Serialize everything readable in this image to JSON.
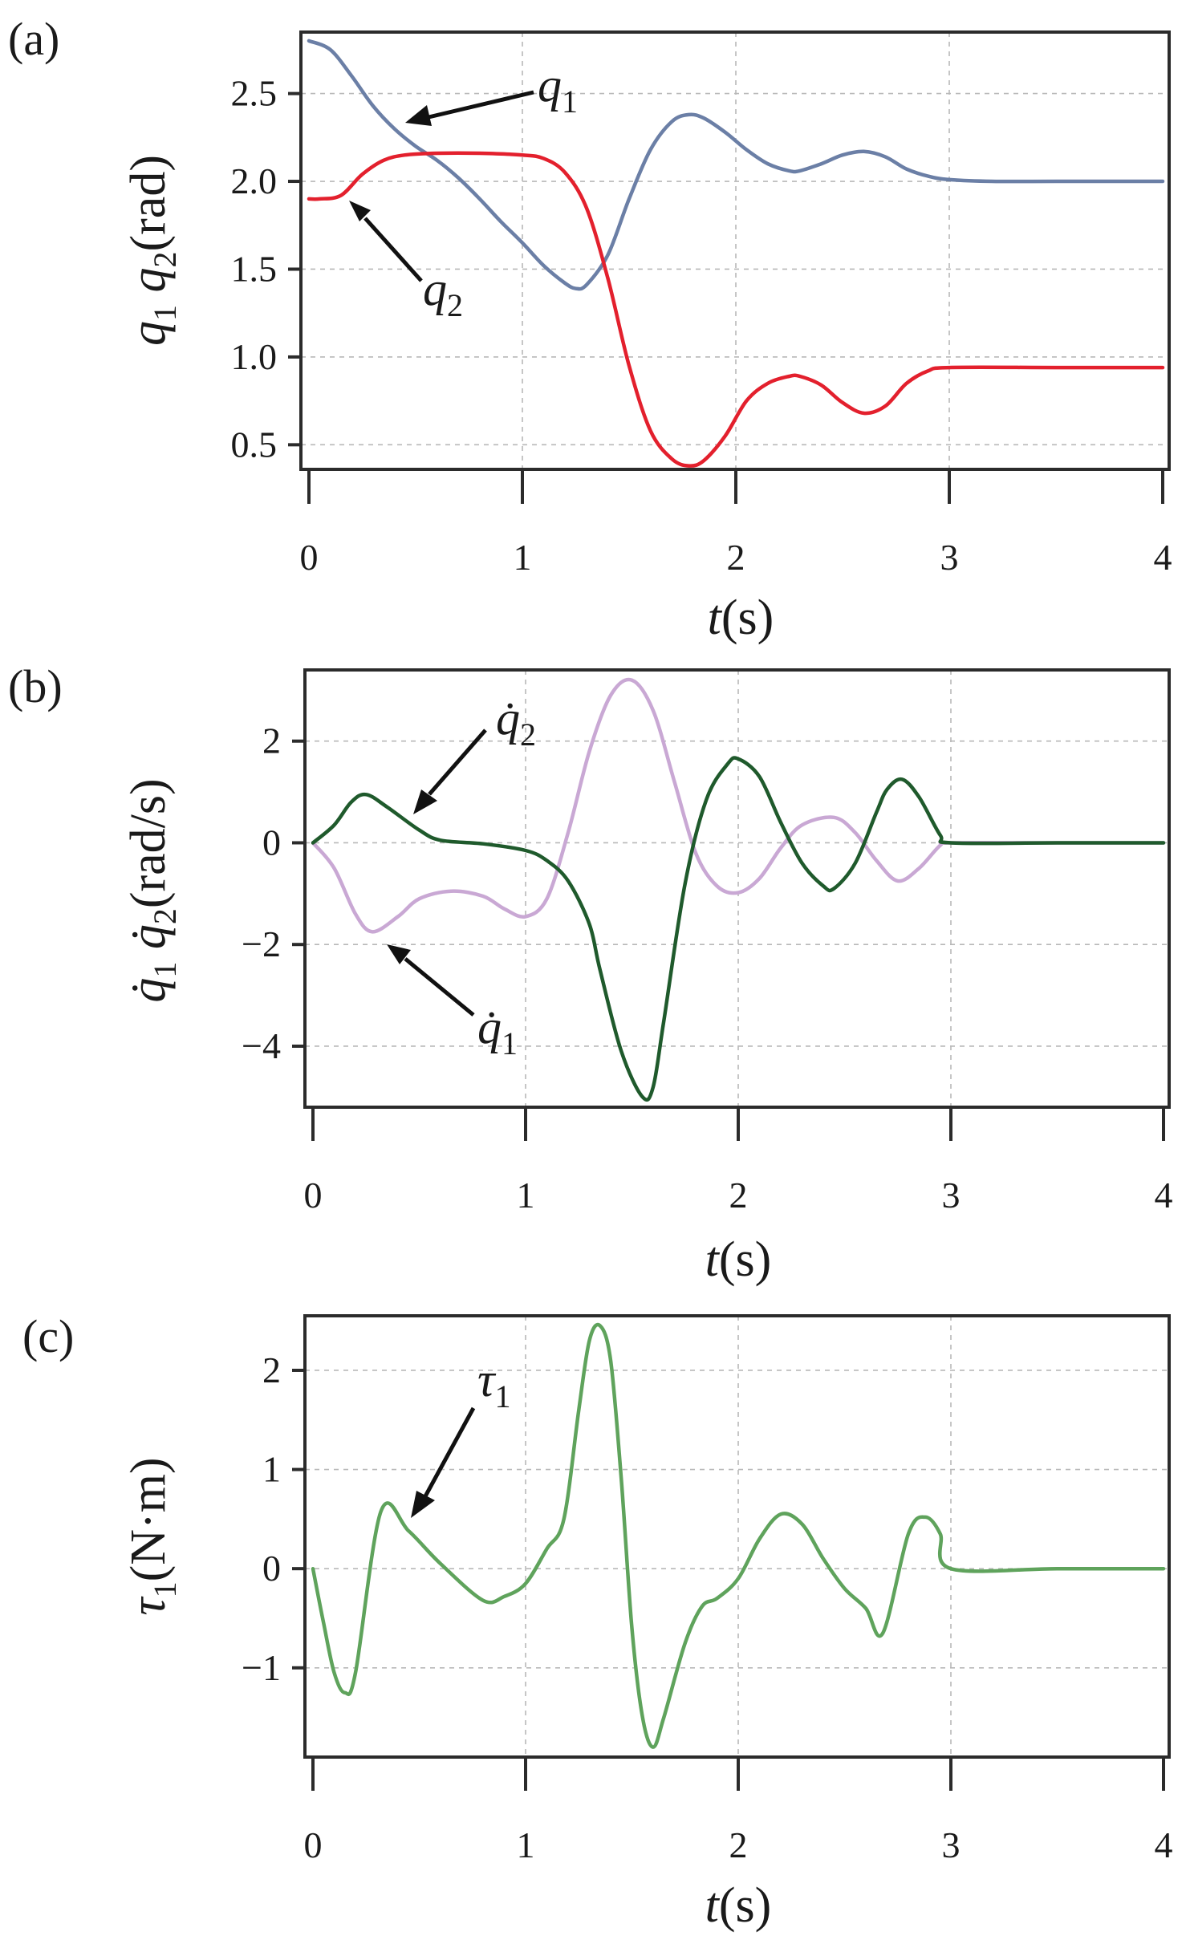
{
  "chart_data": [
    {
      "panel": "(a)",
      "type": "line",
      "xlabel": {
        "var": "t",
        "unit": "(s)"
      },
      "ylabel": {
        "text": "q₁ q₂ (rad)",
        "parts": [
          {
            "v": "q",
            "s": "1"
          },
          {
            "v": "q",
            "s": "2"
          }
        ],
        "unit": "(rad)"
      },
      "xlim": [
        0,
        4
      ],
      "ylim": [
        0.36,
        2.85
      ],
      "xticks": [
        0,
        1,
        2,
        3,
        4
      ],
      "yticks": [
        0.5,
        1.0,
        1.5,
        2.0,
        2.5
      ],
      "ytick_labels": [
        "0.5",
        "1.0",
        "1.5",
        "2.0",
        "2.5"
      ],
      "grid": true,
      "series": [
        {
          "name": "q1",
          "color": "#6b7fa6",
          "x": [
            0,
            0.1,
            0.2,
            0.3,
            0.4,
            0.5,
            0.6,
            0.7,
            0.8,
            0.9,
            1.0,
            1.1,
            1.2,
            1.25,
            1.3,
            1.4,
            1.5,
            1.6,
            1.7,
            1.78,
            1.85,
            1.95,
            2.05,
            2.15,
            2.25,
            2.3,
            2.4,
            2.5,
            2.6,
            2.7,
            2.8,
            2.9,
            3.0,
            3.2,
            3.5,
            4.0
          ],
          "y": [
            2.8,
            2.75,
            2.6,
            2.43,
            2.3,
            2.2,
            2.12,
            2.02,
            1.9,
            1.77,
            1.65,
            1.52,
            1.42,
            1.39,
            1.41,
            1.58,
            1.9,
            2.18,
            2.34,
            2.38,
            2.36,
            2.28,
            2.18,
            2.1,
            2.06,
            2.06,
            2.1,
            2.15,
            2.17,
            2.14,
            2.07,
            2.03,
            2.01,
            2.0,
            2.0,
            2.0
          ]
        },
        {
          "name": "q2",
          "color": "#e3202d",
          "x": [
            0,
            0.05,
            0.15,
            0.25,
            0.35,
            0.45,
            0.6,
            0.8,
            1.0,
            1.1,
            1.2,
            1.3,
            1.4,
            1.5,
            1.6,
            1.7,
            1.78,
            1.85,
            1.95,
            2.05,
            2.15,
            2.25,
            2.3,
            2.4,
            2.5,
            2.6,
            2.7,
            2.8,
            2.9,
            3.0,
            3.5,
            4.0
          ],
          "y": [
            1.9,
            1.9,
            1.92,
            2.04,
            2.12,
            2.15,
            2.16,
            2.16,
            2.15,
            2.13,
            2.05,
            1.85,
            1.45,
            0.95,
            0.58,
            0.42,
            0.38,
            0.41,
            0.55,
            0.75,
            0.85,
            0.89,
            0.89,
            0.84,
            0.74,
            0.68,
            0.72,
            0.85,
            0.92,
            0.94,
            0.94,
            0.94
          ]
        }
      ],
      "annotations": [
        {
          "label": "q",
          "sub": "1",
          "target": [
            0.45,
            2.34
          ]
        },
        {
          "label": "q",
          "sub": "2",
          "target": [
            0.2,
            1.92
          ]
        }
      ]
    },
    {
      "panel": "(b)",
      "type": "line",
      "xlabel": {
        "var": "t",
        "unit": "(s)"
      },
      "ylabel": {
        "text": "q̇₁ q̇₂ (rad/s)",
        "parts": [
          {
            "v": "q̇",
            "s": "1"
          },
          {
            "v": "q̇",
            "s": "2"
          }
        ],
        "unit": "(rad/s)"
      },
      "xlim": [
        0,
        4
      ],
      "ylim": [
        -5.2,
        3.4
      ],
      "xticks": [
        0,
        1,
        2,
        3,
        4
      ],
      "yticks": [
        -4,
        -2,
        0,
        2
      ],
      "ytick_labels": [
        "−4",
        "−2",
        "0",
        "2"
      ],
      "grid": true,
      "series": [
        {
          "name": "q1dot",
          "color": "#c9a8d4",
          "x": [
            0,
            0.1,
            0.2,
            0.28,
            0.4,
            0.5,
            0.65,
            0.8,
            0.9,
            1.0,
            1.1,
            1.2,
            1.3,
            1.4,
            1.5,
            1.6,
            1.7,
            1.8,
            1.9,
            2.0,
            2.1,
            2.2,
            2.3,
            2.45,
            2.55,
            2.65,
            2.75,
            2.85,
            2.95,
            3.0,
            3.5,
            4.0
          ],
          "y": [
            0,
            -0.5,
            -1.4,
            -1.75,
            -1.45,
            -1.1,
            -0.95,
            -1.05,
            -1.3,
            -1.45,
            -1.1,
            0.2,
            1.8,
            2.9,
            3.2,
            2.6,
            1.2,
            -0.2,
            -0.85,
            -0.98,
            -0.7,
            -0.1,
            0.35,
            0.5,
            0.2,
            -0.35,
            -0.75,
            -0.5,
            -0.05,
            0,
            0,
            0
          ]
        },
        {
          "name": "q2dot",
          "color": "#1f5a2c",
          "x": [
            0,
            0.1,
            0.18,
            0.25,
            0.35,
            0.5,
            0.6,
            0.8,
            1.0,
            1.1,
            1.2,
            1.3,
            1.35,
            1.45,
            1.55,
            1.6,
            1.65,
            1.75,
            1.85,
            1.95,
            2.0,
            2.1,
            2.2,
            2.3,
            2.4,
            2.45,
            2.55,
            2.65,
            2.7,
            2.77,
            2.85,
            2.95,
            3.0,
            3.5,
            4.0
          ],
          "y": [
            0,
            0.35,
            0.8,
            0.95,
            0.7,
            0.25,
            0.05,
            -0.02,
            -0.15,
            -0.35,
            -0.75,
            -1.6,
            -2.5,
            -4.1,
            -5.0,
            -4.8,
            -3.5,
            -0.8,
            0.85,
            1.55,
            1.65,
            1.3,
            0.4,
            -0.4,
            -0.85,
            -0.9,
            -0.4,
            0.6,
            1.05,
            1.25,
            0.9,
            0.15,
            0,
            0,
            0
          ]
        }
      ],
      "annotations": [
        {
          "label": "q̇",
          "sub": "2",
          "target": [
            0.48,
            0.48
          ]
        },
        {
          "label": "q̇",
          "sub": "1",
          "target": [
            0.37,
            -1.95
          ]
        }
      ]
    },
    {
      "panel": "(c)",
      "type": "line",
      "xlabel": {
        "var": "t",
        "unit": "(s)"
      },
      "ylabel": {
        "text": "τ₁ (N·m)",
        "parts": [
          {
            "v": "τ",
            "s": "1"
          }
        ],
        "unit": "(N·m)"
      },
      "xlim": [
        0,
        4
      ],
      "ylim": [
        -1.9,
        2.55
      ],
      "xticks": [
        0,
        1,
        2,
        3,
        4
      ],
      "yticks": [
        -1,
        0,
        1,
        2
      ],
      "ytick_labels": [
        "−1",
        "0",
        "1",
        "2"
      ],
      "grid": true,
      "series": [
        {
          "name": "tau1",
          "color": "#5fa35c",
          "x": [
            0,
            0.05,
            0.1,
            0.15,
            0.2,
            0.32,
            0.45,
            0.6,
            0.8,
            0.9,
            1.0,
            1.1,
            1.18,
            1.25,
            1.3,
            1.35,
            1.4,
            1.45,
            1.5,
            1.55,
            1.6,
            1.65,
            1.75,
            1.83,
            1.9,
            2.0,
            2.1,
            2.2,
            2.3,
            2.4,
            2.5,
            2.6,
            2.68,
            2.8,
            2.88,
            2.95,
            3.0,
            3.5,
            4.0
          ],
          "y": [
            0,
            -0.55,
            -1.05,
            -1.25,
            -1.05,
            0.58,
            0.38,
            0.05,
            -0.32,
            -0.28,
            -0.15,
            0.2,
            0.5,
            1.6,
            2.3,
            2.45,
            2.1,
            0.9,
            -0.6,
            -1.5,
            -1.8,
            -1.5,
            -0.75,
            -0.38,
            -0.3,
            -0.1,
            0.3,
            0.55,
            0.45,
            0.1,
            -0.2,
            -0.4,
            -0.65,
            0.35,
            0.52,
            0.35,
            0.0,
            0,
            0
          ]
        }
      ],
      "annotations": [
        {
          "label": "τ",
          "sub": "1",
          "target": [
            0.45,
            0.52
          ]
        }
      ]
    }
  ]
}
